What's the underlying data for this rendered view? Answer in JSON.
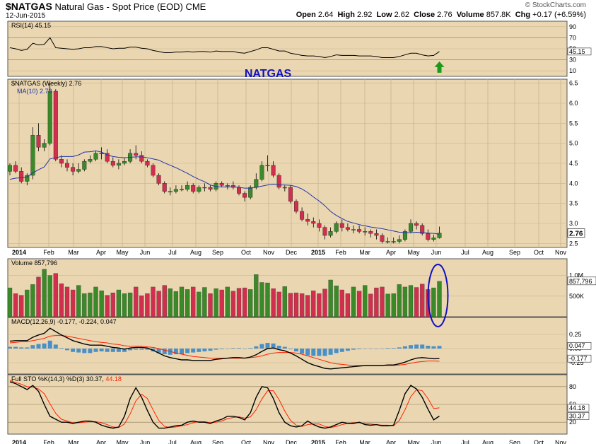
{
  "header": {
    "symbol": "$NATGAS",
    "name": "Natural Gas - Spot Price (EOD)",
    "exchange": "CME",
    "date": "12-Jun-2015",
    "watermark": "© StockCharts.com",
    "open_label": "Open",
    "open": "2.64",
    "high_label": "High",
    "high": "2.92",
    "low_label": "Low",
    "low": "2.62",
    "close_label": "Close",
    "close": "2.76",
    "volume_label": "Volume",
    "volume": "857.8K",
    "chg_label": "Chg",
    "chg": "+0.17 (+6.59%)",
    "arrow_icon": "up-arrow-icon"
  },
  "colors": {
    "background": "#ead7b2",
    "up": "#3a8a2a",
    "down": "#d0304e",
    "line": "#000000",
    "ma": "#2233aa",
    "signal": "#ff2200",
    "hist": "#4a90c8",
    "annotation": "#1010c0",
    "arrow": "#1a9a1a"
  },
  "chart_data": {
    "type": "candlestick",
    "title": "NATGAS",
    "x": [
      "2014-01-03",
      "2014-01-10",
      "2014-01-17",
      "2014-01-24",
      "2014-01-31",
      "2014-02-07",
      "2014-02-14",
      "2014-02-21",
      "2014-02-28",
      "2014-03-07",
      "2014-03-14",
      "2014-03-21",
      "2014-03-28",
      "2014-04-04",
      "2014-04-11",
      "2014-04-18",
      "2014-04-25",
      "2014-05-02",
      "2014-05-09",
      "2014-05-16",
      "2014-05-23",
      "2014-05-30",
      "2014-06-06",
      "2014-06-13",
      "2014-06-20",
      "2014-06-27",
      "2014-07-04",
      "2014-07-11",
      "2014-07-18",
      "2014-07-25",
      "2014-08-01",
      "2014-08-08",
      "2014-08-15",
      "2014-08-22",
      "2014-08-29",
      "2014-09-05",
      "2014-09-12",
      "2014-09-19",
      "2014-09-26",
      "2014-10-03",
      "2014-10-10",
      "2014-10-17",
      "2014-10-24",
      "2014-10-31",
      "2014-11-07",
      "2014-11-14",
      "2014-11-21",
      "2014-11-28",
      "2014-12-05",
      "2014-12-12",
      "2014-12-19",
      "2014-12-26",
      "2015-01-02",
      "2015-01-09",
      "2015-01-16",
      "2015-01-23",
      "2015-01-30",
      "2015-02-06",
      "2015-02-13",
      "2015-02-20",
      "2015-02-27",
      "2015-03-06",
      "2015-03-13",
      "2015-03-20",
      "2015-03-27",
      "2015-04-03",
      "2015-04-10",
      "2015-04-17",
      "2015-04-24",
      "2015-05-01",
      "2015-05-08",
      "2015-05-15",
      "2015-05-22",
      "2015-05-29",
      "2015-06-05",
      "2015-06-12"
    ],
    "x_ticks": [
      "2014",
      "Feb",
      "Mar",
      "Apr",
      "May",
      "Jun",
      "Jul",
      "Aug",
      "Sep",
      "Oct",
      "Nov",
      "Dec",
      "2015",
      "Feb",
      "Mar",
      "Apr",
      "May",
      "Jun",
      "Jul",
      "Aug",
      "Sep",
      "Oct",
      "Nov"
    ],
    "price": {
      "label": "$NATGAS (Weekly)",
      "last": "2.76",
      "ma_label": "MA(10)",
      "ma_last": "2.73",
      "yticks": [
        "6.5",
        "6.0",
        "5.5",
        "5.0",
        "4.5",
        "4.0",
        "3.5",
        "3.0",
        "2.5"
      ],
      "ylim": [
        2.4,
        6.6
      ],
      "open": [
        4.3,
        4.45,
        4.3,
        4.05,
        4.2,
        5.2,
        4.9,
        5.0,
        6.3,
        4.6,
        4.5,
        4.4,
        4.3,
        4.35,
        4.55,
        4.6,
        4.75,
        4.75,
        4.55,
        4.45,
        4.5,
        4.55,
        4.75,
        4.7,
        4.55,
        4.45,
        4.2,
        4.0,
        3.8,
        3.8,
        3.85,
        3.85,
        3.95,
        3.8,
        3.9,
        3.9,
        3.85,
        4.0,
        3.95,
        3.95,
        3.9,
        3.75,
        3.65,
        3.9,
        4.1,
        4.45,
        4.45,
        4.2,
        3.9,
        3.9,
        3.55,
        3.3,
        3.1,
        3.05,
        3.0,
        2.9,
        2.7,
        2.8,
        3.0,
        2.9,
        2.85,
        2.85,
        2.8,
        2.8,
        2.75,
        2.7,
        2.55,
        2.55,
        2.55,
        2.6,
        2.8,
        3.0,
        2.95,
        2.75,
        2.6,
        2.64
      ],
      "close": [
        4.45,
        4.3,
        4.05,
        4.2,
        5.2,
        4.9,
        5.0,
        6.3,
        4.6,
        4.5,
        4.4,
        4.3,
        4.35,
        4.55,
        4.6,
        4.75,
        4.75,
        4.55,
        4.45,
        4.5,
        4.55,
        4.75,
        4.7,
        4.55,
        4.45,
        4.2,
        4.0,
        3.8,
        3.8,
        3.85,
        3.85,
        3.95,
        3.8,
        3.9,
        3.9,
        3.85,
        4.0,
        3.95,
        3.95,
        3.9,
        3.75,
        3.65,
        3.9,
        4.1,
        4.45,
        4.45,
        4.2,
        3.9,
        3.9,
        3.55,
        3.3,
        3.1,
        3.05,
        3.0,
        2.9,
        2.7,
        2.8,
        3.0,
        2.9,
        2.85,
        2.85,
        2.8,
        2.8,
        2.75,
        2.7,
        2.55,
        2.55,
        2.55,
        2.6,
        2.8,
        3.0,
        2.95,
        2.75,
        2.6,
        2.64,
        2.76
      ],
      "high": [
        4.5,
        4.55,
        4.4,
        4.25,
        5.4,
        5.5,
        5.1,
        6.5,
        6.35,
        4.7,
        4.6,
        4.5,
        4.5,
        4.6,
        4.7,
        4.8,
        4.9,
        4.85,
        4.65,
        4.6,
        4.65,
        4.85,
        4.95,
        4.8,
        4.6,
        4.5,
        4.25,
        4.05,
        3.9,
        3.95,
        3.95,
        4.05,
        4.0,
        3.95,
        4.0,
        3.95,
        4.05,
        4.05,
        4.0,
        4.05,
        3.95,
        3.8,
        3.95,
        4.25,
        4.55,
        4.7,
        4.55,
        4.25,
        3.95,
        3.95,
        3.6,
        3.4,
        3.25,
        3.15,
        3.1,
        2.95,
        2.9,
        3.05,
        3.1,
        3.0,
        2.95,
        2.95,
        2.9,
        2.85,
        2.85,
        2.75,
        2.65,
        2.65,
        2.7,
        2.85,
        3.1,
        3.05,
        3.0,
        2.85,
        2.72,
        2.92
      ],
      "low": [
        4.2,
        4.25,
        4.0,
        3.95,
        4.1,
        4.8,
        4.8,
        4.95,
        4.55,
        4.4,
        4.3,
        4.2,
        4.25,
        4.3,
        4.5,
        4.55,
        4.6,
        4.5,
        4.4,
        4.35,
        4.45,
        4.5,
        4.6,
        4.5,
        4.4,
        4.15,
        3.95,
        3.75,
        3.7,
        3.75,
        3.8,
        3.8,
        3.75,
        3.75,
        3.8,
        3.8,
        3.8,
        3.9,
        3.85,
        3.85,
        3.7,
        3.55,
        3.6,
        3.85,
        4.05,
        4.3,
        4.15,
        3.85,
        3.8,
        3.5,
        3.25,
        3.05,
        2.95,
        2.9,
        2.8,
        2.6,
        2.65,
        2.75,
        2.8,
        2.8,
        2.75,
        2.75,
        2.7,
        2.65,
        2.6,
        2.5,
        2.5,
        2.5,
        2.5,
        2.55,
        2.75,
        2.85,
        2.7,
        2.55,
        2.55,
        2.62
      ],
      "ma": [
        4.1,
        4.13,
        4.14,
        4.16,
        4.26,
        4.34,
        4.41,
        4.61,
        4.64,
        4.67,
        4.67,
        4.67,
        4.71,
        4.78,
        4.79,
        4.81,
        4.78,
        4.71,
        4.67,
        4.65,
        4.64,
        4.65,
        4.66,
        4.66,
        4.64,
        4.61,
        4.58,
        4.51,
        4.45,
        4.39,
        4.32,
        4.25,
        4.17,
        4.1,
        4.04,
        3.96,
        3.92,
        3.91,
        3.91,
        3.91,
        3.9,
        3.88,
        3.88,
        3.9,
        3.93,
        3.96,
        3.98,
        3.96,
        3.96,
        3.95,
        3.92,
        3.86,
        3.77,
        3.66,
        3.56,
        3.44,
        3.3,
        3.2,
        3.12,
        3.05,
        3.01,
        2.97,
        2.94,
        2.91,
        2.89,
        2.87,
        2.84,
        2.81,
        2.78,
        2.77,
        2.77,
        2.78,
        2.77,
        2.76,
        2.75,
        2.73
      ]
    },
    "rsi": {
      "label": "RSI(14)",
      "last": "45.15",
      "yticks": [
        "90",
        "70",
        "50",
        "30",
        "10"
      ],
      "ylim": [
        0,
        100
      ],
      "values": [
        52,
        50,
        47,
        49,
        60,
        57,
        58,
        70,
        52,
        51,
        50,
        49,
        50,
        52,
        52,
        54,
        54,
        52,
        50,
        51,
        51,
        53,
        53,
        51,
        50,
        47,
        45,
        43,
        43,
        44,
        44,
        45,
        44,
        45,
        45,
        44,
        46,
        45,
        45,
        45,
        43,
        42,
        45,
        48,
        52,
        52,
        49,
        46,
        46,
        42,
        40,
        38,
        37,
        37,
        36,
        34,
        36,
        39,
        38,
        38,
        38,
        37,
        37,
        37,
        36,
        34,
        34,
        34,
        36,
        39,
        42,
        42,
        39,
        37,
        38,
        45
      ]
    },
    "volume": {
      "label": "Volume",
      "last": "857,796",
      "yticks": [
        "1.0M",
        "500K"
      ],
      "ylim": [
        0,
        1300000
      ],
      "values": [
        700000,
        560000,
        520000,
        650000,
        780000,
        960000,
        1150000,
        1000000,
        1050000,
        800000,
        720000,
        650000,
        760000,
        560000,
        580000,
        720000,
        630000,
        520000,
        580000,
        650000,
        560000,
        580000,
        720000,
        510000,
        560000,
        720000,
        620000,
        760000,
        680000,
        610000,
        720000,
        660000,
        720000,
        600000,
        710000,
        560000,
        680000,
        650000,
        720000,
        620000,
        690000,
        700000,
        660000,
        1020000,
        830000,
        820000,
        680000,
        600000,
        730000,
        570000,
        580000,
        560000,
        520000,
        630000,
        560000,
        670000,
        890000,
        750000,
        650000,
        560000,
        720000,
        620000,
        760000,
        550000,
        700000,
        720000,
        550000,
        560000,
        780000,
        720000,
        760000,
        710000,
        790000,
        660000,
        700000,
        857796
      ]
    },
    "macd": {
      "label": "MACD(12,26,9)",
      "values_label": "-0.177, -0.224, 0.047",
      "yticks": [
        "0.25",
        "0.00",
        "-0.25"
      ],
      "ylim": [
        -0.45,
        0.55
      ],
      "macd": [
        0.13,
        0.14,
        0.14,
        0.14,
        0.2,
        0.24,
        0.27,
        0.36,
        0.3,
        0.24,
        0.19,
        0.14,
        0.11,
        0.08,
        0.06,
        0.06,
        0.06,
        0.04,
        0.02,
        0.01,
        -0.01,
        0.01,
        0.02,
        0.02,
        0.01,
        -0.03,
        -0.08,
        -0.13,
        -0.16,
        -0.18,
        -0.2,
        -0.2,
        -0.21,
        -0.21,
        -0.21,
        -0.21,
        -0.19,
        -0.18,
        -0.17,
        -0.16,
        -0.16,
        -0.17,
        -0.15,
        -0.11,
        -0.05,
        0.0,
        0.01,
        -0.02,
        -0.04,
        -0.08,
        -0.13,
        -0.19,
        -0.25,
        -0.29,
        -0.32,
        -0.35,
        -0.36,
        -0.35,
        -0.34,
        -0.33,
        -0.32,
        -0.31,
        -0.3,
        -0.3,
        -0.3,
        -0.3,
        -0.29,
        -0.29,
        -0.27,
        -0.24,
        -0.2,
        -0.17,
        -0.16,
        -0.17,
        -0.18,
        -0.177
      ],
      "signal": [
        0.1,
        0.11,
        0.12,
        0.12,
        0.14,
        0.16,
        0.18,
        0.22,
        0.23,
        0.23,
        0.22,
        0.2,
        0.18,
        0.16,
        0.14,
        0.12,
        0.11,
        0.1,
        0.08,
        0.07,
        0.05,
        0.04,
        0.04,
        0.04,
        0.03,
        0.02,
        0.0,
        -0.03,
        -0.05,
        -0.08,
        -0.1,
        -0.12,
        -0.14,
        -0.15,
        -0.16,
        -0.17,
        -0.17,
        -0.17,
        -0.17,
        -0.17,
        -0.17,
        -0.17,
        -0.16,
        -0.15,
        -0.13,
        -0.1,
        -0.08,
        -0.07,
        -0.07,
        -0.07,
        -0.08,
        -0.1,
        -0.13,
        -0.16,
        -0.19,
        -0.22,
        -0.25,
        -0.27,
        -0.28,
        -0.29,
        -0.3,
        -0.3,
        -0.3,
        -0.3,
        -0.3,
        -0.3,
        -0.3,
        -0.3,
        -0.29,
        -0.28,
        -0.26,
        -0.24,
        -0.23,
        -0.22,
        -0.22,
        -0.224
      ]
    },
    "sto": {
      "label": "Full STO %K(14,3) %D(3)",
      "k_last": "30.37",
      "d_last": "44.18",
      "yticks": [
        "80",
        "50",
        "20"
      ],
      "ylim": [
        0,
        100
      ],
      "k": [
        88,
        85,
        80,
        75,
        82,
        72,
        50,
        30,
        25,
        20,
        20,
        18,
        20,
        22,
        22,
        20,
        15,
        12,
        10,
        12,
        30,
        60,
        78,
        62,
        40,
        20,
        10,
        10,
        12,
        14,
        15,
        20,
        22,
        20,
        20,
        18,
        22,
        25,
        30,
        30,
        28,
        24,
        36,
        62,
        80,
        78,
        60,
        36,
        20,
        14,
        12,
        14,
        22,
        16,
        12,
        10,
        12,
        16,
        20,
        18,
        18,
        20,
        16,
        15,
        16,
        14,
        14,
        15,
        40,
        68,
        82,
        76,
        62,
        42,
        24,
        30.37
      ],
      "d": [
        90,
        87,
        84,
        80,
        79,
        76,
        68,
        51,
        35,
        25,
        22,
        19,
        19,
        20,
        21,
        21,
        19,
        16,
        12,
        11,
        17,
        34,
        56,
        67,
        60,
        41,
        23,
        13,
        11,
        12,
        14,
        16,
        19,
        21,
        21,
        19,
        20,
        22,
        26,
        28,
        29,
        27,
        29,
        41,
        59,
        73,
        73,
        58,
        39,
        23,
        15,
        13,
        16,
        17,
        17,
        13,
        11,
        13,
        16,
        18,
        19,
        19,
        18,
        17,
        16,
        15,
        15,
        14,
        23,
        41,
        63,
        75,
        73,
        60,
        43,
        44.18
      ]
    }
  }
}
